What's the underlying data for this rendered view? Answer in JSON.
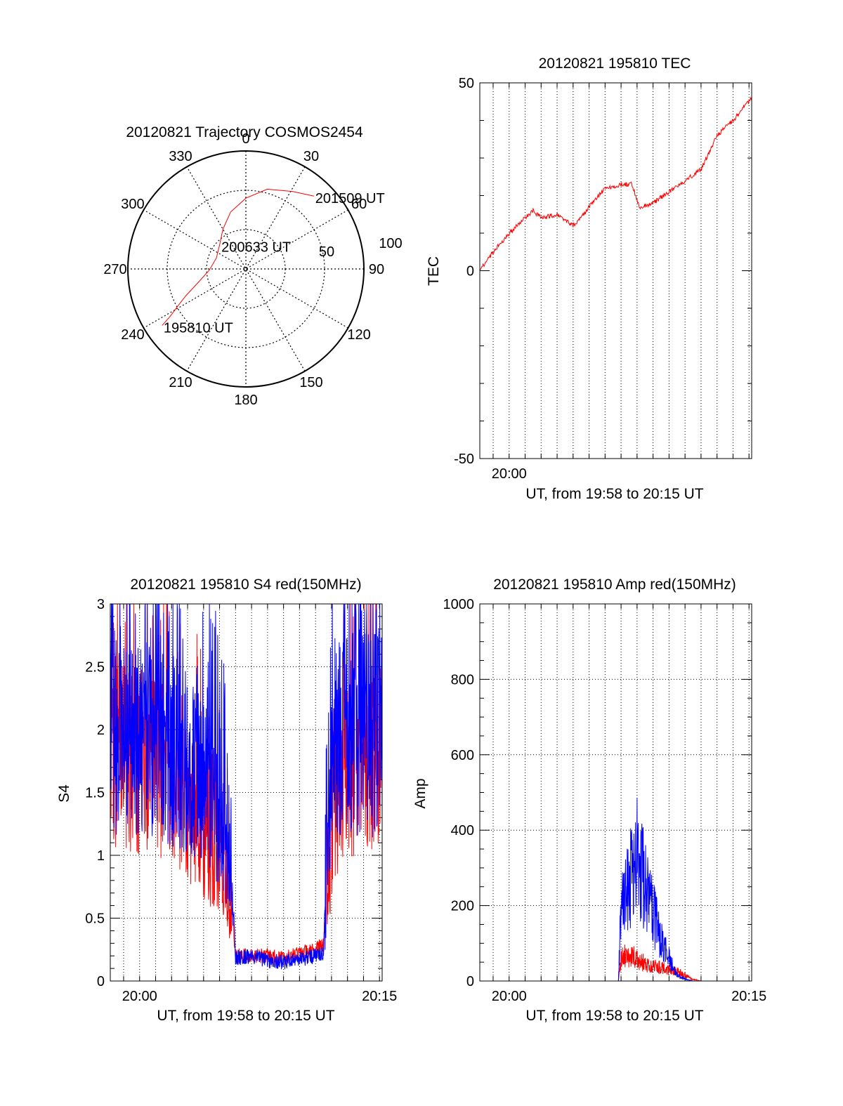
{
  "colors": {
    "red": "#ff0000",
    "blue": "#0000ff",
    "axis": "#000000",
    "grid": "#000000"
  },
  "chart_data": [
    {
      "id": "trajectory",
      "type": "polar",
      "title": "20120821 Trajectory COSMOS2454",
      "azimuth_labels": [
        "0",
        "30",
        "60",
        "90",
        "120",
        "150",
        "180",
        "210",
        "240",
        "270",
        "300",
        "330"
      ],
      "elevation_ring_labels": [
        "50",
        "100"
      ],
      "elevation_rings": [
        60,
        30
      ],
      "grid": true,
      "track": {
        "color": "red",
        "points": [
          {
            "az": 236,
            "el": 13
          },
          {
            "az": 238,
            "el": 22
          },
          {
            "az": 241,
            "el": 30
          },
          {
            "az": 246,
            "el": 40
          },
          {
            "az": 254,
            "el": 52
          },
          {
            "az": 268,
            "el": 62
          },
          {
            "az": 290,
            "el": 66
          },
          {
            "az": 312,
            "el": 63
          },
          {
            "az": 330,
            "el": 55
          },
          {
            "az": 345,
            "el": 45
          },
          {
            "az": 360,
            "el": 36
          },
          {
            "az": 15,
            "el": 27
          },
          {
            "az": 31,
            "el": 21
          },
          {
            "az": 43,
            "el": 14
          }
        ]
      },
      "annotations": [
        {
          "text": "195810 UT",
          "az": 236,
          "el": 13
        },
        {
          "text": "200633 UT",
          "az": 313,
          "el": 63
        },
        {
          "text": "201509 UT",
          "az": 43,
          "el": 14
        }
      ]
    },
    {
      "id": "tec",
      "type": "line",
      "title": "20120821 195810 TEC",
      "xlabel": "UT, from 19:58 to 20:15 UT",
      "ylabel": "TEC",
      "xlim": [
        "19:58:10",
        "20:15:10"
      ],
      "ylim": [
        -50,
        50
      ],
      "yticks": [
        -50,
        0,
        50
      ],
      "xtick_labels": [
        "20:00"
      ],
      "grid": "vertical-dotted-every-minute",
      "series": [
        {
          "color": "red",
          "points": [
            [
              "19:58:10",
              0
            ],
            [
              "19:59:00",
              5
            ],
            [
              "20:00:00",
              10
            ],
            [
              "20:01:00",
              14
            ],
            [
              "20:01:30",
              16
            ],
            [
              "20:02:00",
              14
            ],
            [
              "20:03:00",
              15
            ],
            [
              "20:04:00",
              12
            ],
            [
              "20:04:30",
              14
            ],
            [
              "20:05:00",
              17
            ],
            [
              "20:06:00",
              22
            ],
            [
              "20:07:00",
              23
            ],
            [
              "20:07:40",
              23
            ],
            [
              "20:08:10",
              17
            ],
            [
              "20:09:00",
              18
            ],
            [
              "20:10:00",
              21
            ],
            [
              "20:11:00",
              24
            ],
            [
              "20:12:00",
              27
            ],
            [
              "20:13:00",
              36
            ],
            [
              "20:14:00",
              40
            ],
            [
              "20:15:10",
              46
            ]
          ]
        }
      ]
    },
    {
      "id": "s4",
      "type": "line",
      "title": "20120821 195810 S4 red(150MHz)",
      "xlabel": "UT, from 19:58 to 20:15 UT",
      "ylabel": "S4",
      "xlim": [
        "19:58:10",
        "20:15:10"
      ],
      "ylim": [
        0,
        3
      ],
      "yticks": [
        0,
        0.5,
        1,
        1.5,
        2,
        2.5,
        3
      ],
      "ytick_labels": [
        "0",
        "0.5",
        "1",
        "1.5",
        "2",
        "2.5",
        "3"
      ],
      "xtick_labels": [
        "20:00",
        "20:15"
      ],
      "grid": "dotted",
      "series": [
        {
          "color": "red",
          "points": [
            [
              "19:58:10",
              2.7
            ],
            [
              "19:59:00",
              2.6
            ],
            [
              "20:00:00",
              2.5
            ],
            [
              "20:01:00",
              2.4
            ],
            [
              "20:02:00",
              2.3
            ],
            [
              "20:03:00",
              2.0
            ],
            [
              "20:04:00",
              1.6
            ],
            [
              "20:05:00",
              1.2
            ],
            [
              "20:05:40",
              0.8
            ],
            [
              "20:06:00",
              0.2
            ],
            [
              "20:07:00",
              0.2
            ],
            [
              "20:08:00",
              0.2
            ],
            [
              "20:09:00",
              0.18
            ],
            [
              "20:10:00",
              0.22
            ],
            [
              "20:11:00",
              0.25
            ],
            [
              "20:11:30",
              0.3
            ],
            [
              "20:12:00",
              1.5
            ],
            [
              "20:12:30",
              2.2
            ],
            [
              "20:13:00",
              2.4
            ],
            [
              "20:14:00",
              2.5
            ],
            [
              "20:15:10",
              2.6
            ]
          ]
        },
        {
          "color": "blue",
          "points": [
            [
              "19:58:10",
              2.9
            ],
            [
              "19:59:00",
              2.8
            ],
            [
              "20:00:00",
              2.7
            ],
            [
              "20:01:00",
              2.7
            ],
            [
              "20:02:00",
              2.6
            ],
            [
              "20:03:00",
              2.5
            ],
            [
              "20:04:00",
              2.3
            ],
            [
              "20:05:00",
              1.9
            ],
            [
              "20:05:40",
              1.3
            ],
            [
              "20:06:00",
              0.18
            ],
            [
              "20:07:00",
              0.2
            ],
            [
              "20:08:00",
              0.16
            ],
            [
              "20:09:00",
              0.15
            ],
            [
              "20:10:00",
              0.17
            ],
            [
              "20:11:00",
              0.2
            ],
            [
              "20:11:30",
              0.22
            ],
            [
              "20:12:00",
              2.2
            ],
            [
              "20:12:30",
              2.8
            ],
            [
              "20:13:00",
              2.9
            ],
            [
              "20:14:00",
              2.8
            ],
            [
              "20:15:10",
              2.8
            ]
          ]
        }
      ]
    },
    {
      "id": "amp",
      "type": "line",
      "title": "20120821 195810 Amp red(150MHz)",
      "xlabel": "UT, from 19:58 to 20:15 UT",
      "ylabel": "Amp",
      "xlim": [
        "19:58:10",
        "20:15:10"
      ],
      "ylim": [
        0,
        1000
      ],
      "yticks": [
        0,
        200,
        400,
        600,
        800,
        1000
      ],
      "ytick_labels": [
        "0",
        "200",
        "400",
        "600",
        "800",
        "1000"
      ],
      "xtick_labels": [
        "20:00",
        "20:15"
      ],
      "grid": "dotted",
      "series": [
        {
          "color": "red",
          "points": [
            [
              "19:58:10",
              0
            ],
            [
              "20:06:50",
              0
            ],
            [
              "20:07:00",
              60
            ],
            [
              "20:07:30",
              70
            ],
            [
              "20:08:00",
              60
            ],
            [
              "20:08:30",
              45
            ],
            [
              "20:09:00",
              40
            ],
            [
              "20:09:30",
              35
            ],
            [
              "20:10:00",
              30
            ],
            [
              "20:10:30",
              25
            ],
            [
              "20:11:00",
              15
            ],
            [
              "20:11:30",
              5
            ],
            [
              "20:12:00",
              0
            ],
            [
              "20:15:10",
              0
            ]
          ]
        },
        {
          "color": "blue",
          "points": [
            [
              "19:58:10",
              0
            ],
            [
              "20:06:50",
              0
            ],
            [
              "20:07:00",
              200
            ],
            [
              "20:07:30",
              260
            ],
            [
              "20:08:00",
              330
            ],
            [
              "20:08:30",
              260
            ],
            [
              "20:09:00",
              180
            ],
            [
              "20:09:30",
              110
            ],
            [
              "20:10:00",
              60
            ],
            [
              "20:10:30",
              15
            ],
            [
              "20:11:00",
              5
            ],
            [
              "20:11:30",
              0
            ],
            [
              "20:15:10",
              0
            ]
          ]
        }
      ]
    }
  ]
}
